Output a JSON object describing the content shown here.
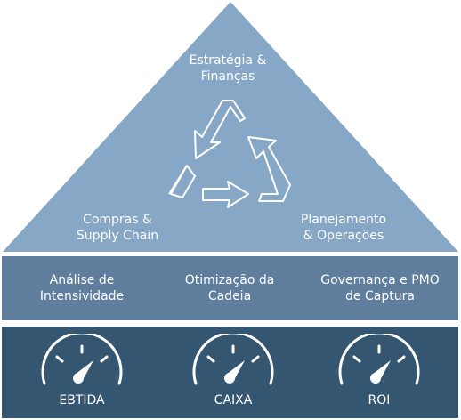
{
  "pyramid": {
    "top_label": "Estratégia &\nFinanças",
    "left_label": "Compras &\nSupply Chain",
    "right_label": "Planejamento\n& Operações",
    "color": "#87a7c6"
  },
  "middle_band": {
    "color": "#5f7e9e",
    "cells": [
      {
        "label": "Análise de\nIntensividade"
      },
      {
        "label": "Otimização da\nCadeia"
      },
      {
        "label": "Governança e PMO\nde Captura"
      }
    ]
  },
  "bottom_band": {
    "color": "#345671",
    "gauges": [
      {
        "label": "EBTIDA",
        "icon": "speedometer-icon"
      },
      {
        "label": "CAIXA",
        "icon": "speedometer-icon"
      },
      {
        "label": "ROI",
        "icon": "speedometer-icon"
      }
    ]
  }
}
